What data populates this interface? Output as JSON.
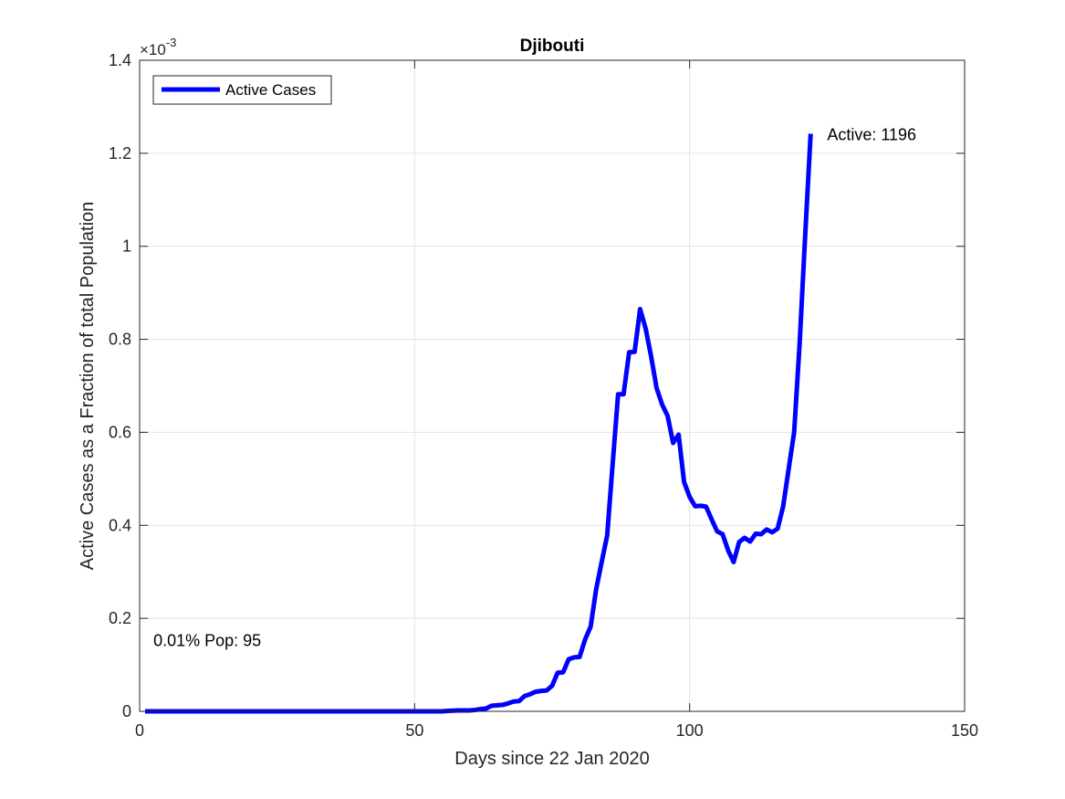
{
  "chart_data": {
    "type": "line",
    "title": "Djibouti",
    "xlabel": "Days since 22 Jan 2020",
    "ylabel": "Active Cases as a Fraction of total Population",
    "xlim": [
      0,
      150
    ],
    "ylim": [
      0,
      0.0014
    ],
    "xticks": [
      0,
      50,
      100,
      150
    ],
    "xtick_labels": [
      "0",
      "50",
      "100",
      "150"
    ],
    "yticks": [
      0,
      0.0002,
      0.0004,
      0.0006,
      0.0008,
      0.001,
      0.0012,
      0.0014
    ],
    "ytick_labels": [
      "0",
      "0.2",
      "0.4",
      "0.6",
      "0.8",
      "1",
      "1.2",
      "1.4"
    ],
    "y_exponent_label": "×10",
    "y_exponent_power": "-3",
    "grid": true,
    "legend_position": "top-left",
    "series": [
      {
        "name": "Active Cases",
        "color": "#0000ff",
        "x": [
          1,
          10,
          20,
          30,
          40,
          50,
          55,
          56,
          58,
          60,
          61,
          62,
          63,
          64,
          65,
          66,
          67,
          68,
          69,
          70,
          71,
          72,
          73,
          74,
          75,
          76,
          77,
          78,
          79,
          80,
          81,
          82,
          83,
          84,
          85,
          86,
          87,
          88,
          89,
          90,
          91,
          92,
          93,
          94,
          95,
          96,
          97,
          98,
          99,
          100,
          101,
          102,
          103,
          104,
          105,
          106,
          107,
          108,
          109,
          110,
          111,
          112,
          113,
          114,
          115,
          116,
          117,
          118,
          119,
          120,
          121,
          122
        ],
        "values": [
          0,
          0,
          0,
          0,
          0,
          0,
          0,
          1e-06,
          2e-06,
          2e-06,
          3e-06,
          5e-06,
          6e-06,
          1.2e-05,
          1.3e-05,
          1.4e-05,
          1.7e-05,
          2.1e-05,
          2.2e-05,
          3.3e-05,
          3.7e-05,
          4.2e-05,
          4.4e-05,
          4.5e-05,
          5.5e-05,
          8.3e-05,
          8.4e-05,
          0.000112,
          0.000116,
          0.000117,
          0.000155,
          0.000182,
          0.000262,
          0.00032,
          0.000378,
          0.000531,
          0.000682,
          0.000682,
          0.000772,
          0.000773,
          0.000865,
          0.000823,
          0.000763,
          0.000695,
          0.00066,
          0.000635,
          0.000577,
          0.000595,
          0.000493,
          0.000461,
          0.000441,
          0.000442,
          0.00044,
          0.000413,
          0.000387,
          0.000381,
          0.000346,
          0.000321,
          0.000364,
          0.000373,
          0.000365,
          0.000382,
          0.000381,
          0.000391,
          0.000385,
          0.000393,
          0.00044,
          0.00052,
          0.0006,
          0.00079,
          0.00102,
          0.001242
        ]
      }
    ],
    "annotations": [
      {
        "text": "Active: 1196",
        "x": 125,
        "y": 0.00124
      },
      {
        "text": "0.01% Pop: 95",
        "x": 2.5,
        "y": 0.000152
      }
    ]
  }
}
